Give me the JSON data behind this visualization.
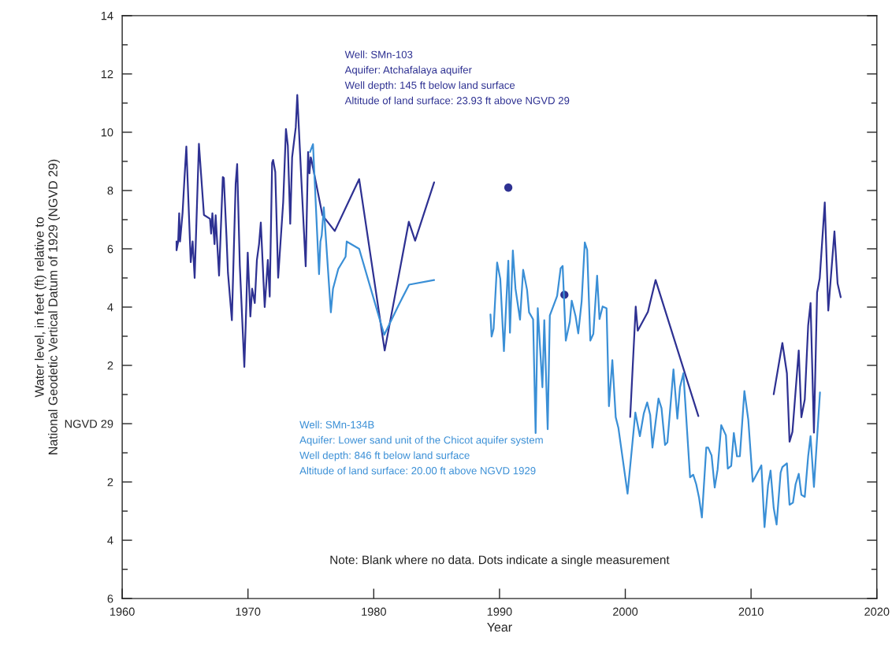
{
  "chart_data": {
    "type": "line",
    "xlabel": "Year",
    "ylabel": "Water level, in feet (ft) relative to\nNational Geodetic Vertical Datum of 1929 (NGVD 29)",
    "xlim": [
      1960,
      2020
    ],
    "xticks": [
      1960,
      1970,
      1980,
      1990,
      2000,
      2010,
      2020
    ],
    "ylim": [
      -6,
      14
    ],
    "yticks": [
      {
        "value": -6,
        "label": "6"
      },
      {
        "value": -5,
        "label": null
      },
      {
        "value": -4,
        "label": "4"
      },
      {
        "value": -3,
        "label": null
      },
      {
        "value": -2,
        "label": "2"
      },
      {
        "value": -1,
        "label": null
      },
      {
        "value": 0,
        "label": "NGVD 29"
      },
      {
        "value": 1,
        "label": null
      },
      2,
      {
        "value": 3,
        "label": null
      },
      4,
      {
        "value": 5,
        "label": null
      },
      6,
      {
        "value": 7,
        "label": null
      },
      8,
      {
        "value": 9,
        "label": null
      },
      10,
      {
        "value": 11,
        "label": null
      },
      12,
      {
        "value": 13,
        "label": null
      },
      14
    ],
    "grid": false,
    "legend": false,
    "line_style": "solid",
    "marker": "none",
    "series": [
      {
        "name": "Well: SMn-103\nAquifer: Atchafalaya aquifer\nWell depth: 145 ft below land surface\nAltitude of land surface: 23.93 ft above NGVD 29",
        "color": "#2e3192",
        "x": [
          1964.32,
          1964.32,
          1964.45,
          1964.53,
          1964.6,
          1964.8,
          1964.95,
          1965.1,
          1965.45,
          1965.6,
          1965.76,
          1966.1,
          1966.5,
          1966.98,
          1967.07,
          1967.17,
          1967.34,
          1967.43,
          1967.7,
          1968.0,
          1968.08,
          1968.29,
          1968.41,
          1968.72,
          1969.02,
          1969.14,
          1969.35,
          1969.71,
          1969.87,
          1969.98,
          1970.19,
          1970.33,
          1970.54,
          1970.71,
          1970.88,
          1971.02,
          1971.33,
          1971.58,
          1971.73,
          1971.92,
          1972.0,
          1972.17,
          1972.4,
          1972.8,
          1973.02,
          1973.17,
          1973.36,
          1973.51,
          1973.8,
          1973.92,
          1974.26,
          1974.59,
          1974.78,
          1974.89,
          1974.99,
          1975.03,
          1975.92,
          1976.9,
          1978.84,
          1980.87,
          1982.79,
          1983.29,
          1984.8,
          1987,
          2000.39,
          2000.83,
          2000.99,
          2001.8,
          2002.41,
          2005.81,
          2009,
          2011.8,
          2012.49,
          2012.85,
          2013.06,
          2013.29,
          2013.79,
          2014.0,
          2014.27,
          2014.54,
          2014.73,
          2015.0,
          2015.25,
          2015.46,
          2015.86,
          2016.14,
          2016.63,
          2016.88,
          2017.13
        ],
        "values": [
          6.25,
          5.95,
          6.25,
          7.22,
          6.25,
          7.24,
          8.41,
          9.51,
          5.54,
          6.25,
          5.0,
          9.6,
          7.16,
          7.03,
          6.52,
          7.22,
          6.16,
          7.15,
          5.08,
          8.46,
          8.43,
          6.43,
          5.17,
          3.55,
          8.23,
          8.91,
          5.44,
          1.95,
          4.09,
          5.87,
          3.68,
          4.63,
          4.14,
          5.62,
          6.16,
          6.9,
          4.0,
          5.62,
          4.36,
          8.95,
          9.05,
          8.64,
          5.01,
          7.6,
          10.11,
          9.54,
          6.86,
          9.14,
          10.17,
          11.28,
          8.23,
          5.4,
          9.32,
          8.59,
          9.14,
          9.09,
          7.15,
          6.61,
          8.39,
          2.51,
          6.93,
          6.28,
          8.28,
          null,
          0.23,
          4.02,
          3.19,
          3.84,
          4.93,
          0.26,
          null,
          1.01,
          2.77,
          1.73,
          -0.62,
          -0.28,
          2.51,
          0.22,
          0.83,
          3.37,
          4.14,
          -0.31,
          4.5,
          4.99,
          7.59,
          3.88,
          6.6,
          4.81,
          4.34
        ]
      },
      {
        "name": "Well: SMn-134B\nAquifer: Lower sand unit of the Chicot aquifer system\nWell depth: 846 ft below land surface\nAltitude of land surface: 20.00 ft above NGVD 1929",
        "color": "#3a8fd6",
        "x": [
          1974.93,
          1975.17,
          1975.65,
          1975.76,
          1975.86,
          1976.03,
          1976.59,
          1976.76,
          1977.18,
          1977.76,
          1977.85,
          1978.84,
          1980.83,
          1981.98,
          1982.81,
          1984.8,
          1987,
          1989.28,
          1989.37,
          1989.53,
          1989.81,
          1990.06,
          1990.35,
          1990.7,
          1990.83,
          1991.06,
          1991.27,
          1991.63,
          1991.88,
          1992.19,
          1992.35,
          1992.67,
          1992.87,
          1993.04,
          1993.41,
          1993.56,
          1993.83,
          1994.0,
          1994.58,
          1994.86,
          1995.02,
          1995.27,
          1995.59,
          1995.74,
          1996.05,
          1996.26,
          1996.53,
          1996.78,
          1996.97,
          1997.22,
          1997.46,
          1997.76,
          1997.95,
          1998.2,
          1998.51,
          1998.7,
          1998.97,
          1999.24,
          1999.45,
          2000.18,
          2000.8,
          2001.16,
          2001.47,
          2001.74,
          2001.98,
          2002.16,
          2002.64,
          2002.88,
          2003.16,
          2003.35,
          2003.83,
          2004.14,
          2004.35,
          2004.62,
          2005.15,
          2005.4,
          2005.64,
          2005.86,
          2006.09,
          2006.44,
          2006.59,
          2006.86,
          2007.11,
          2007.34,
          2007.63,
          2008.0,
          2008.15,
          2008.42,
          2008.63,
          2008.88,
          2009.11,
          2009.47,
          2009.78,
          2010.13,
          2010.82,
          2011.07,
          2011.35,
          2011.55,
          2011.8,
          2012.03,
          2012.35,
          2012.49,
          2012.85,
          2013.06,
          2013.33,
          2013.54,
          2013.79,
          2014.0,
          2014.27,
          2014.54,
          2014.73,
          2015.0,
          2015.48
        ],
        "values": [
          9.32,
          9.59,
          5.13,
          6.25,
          6.45,
          7.42,
          3.82,
          4.63,
          5.31,
          5.73,
          6.25,
          6.0,
          3.05,
          4.07,
          4.77,
          4.93,
          null,
          3.75,
          2.99,
          3.26,
          5.53,
          4.97,
          2.49,
          5.59,
          3.12,
          5.94,
          4.63,
          3.57,
          5.28,
          4.59,
          3.82,
          3.58,
          -0.32,
          3.96,
          1.25,
          3.55,
          -0.19,
          3.71,
          4.38,
          5.33,
          5.41,
          2.85,
          3.5,
          4.22,
          3.68,
          3.1,
          4.2,
          6.22,
          5.96,
          2.85,
          3.08,
          5.08,
          3.59,
          4.02,
          3.96,
          0.6,
          2.18,
          0.22,
          -0.14,
          -2.4,
          0.38,
          -0.43,
          0.35,
          0.73,
          0.3,
          -0.82,
          0.86,
          0.53,
          -0.73,
          -0.64,
          1.86,
          0.17,
          1.25,
          1.73,
          -1.84,
          -1.75,
          -2.08,
          -2.53,
          -3.22,
          -0.82,
          -0.82,
          -1.09,
          -2.19,
          -1.57,
          -0.05,
          -0.4,
          -1.54,
          -1.45,
          -0.32,
          -1.12,
          -1.12,
          1.12,
          0.13,
          -1.99,
          -1.43,
          -3.55,
          -2.11,
          -1.61,
          -2.89,
          -3.46,
          -1.68,
          -1.49,
          -1.36,
          -2.78,
          -2.71,
          -2.08,
          -1.72,
          -2.44,
          -2.51,
          -1.12,
          -0.43,
          -2.17,
          1.07
        ]
      },
      {
        "type": "scatter",
        "marker": "circle",
        "color": "#2e3192",
        "x": [
          1990.7,
          1995.16
        ],
        "values": [
          8.1,
          4.42
        ]
      }
    ],
    "annotations": [
      "Note: Blank where no data. Dots indicate a single measurement"
    ]
  }
}
